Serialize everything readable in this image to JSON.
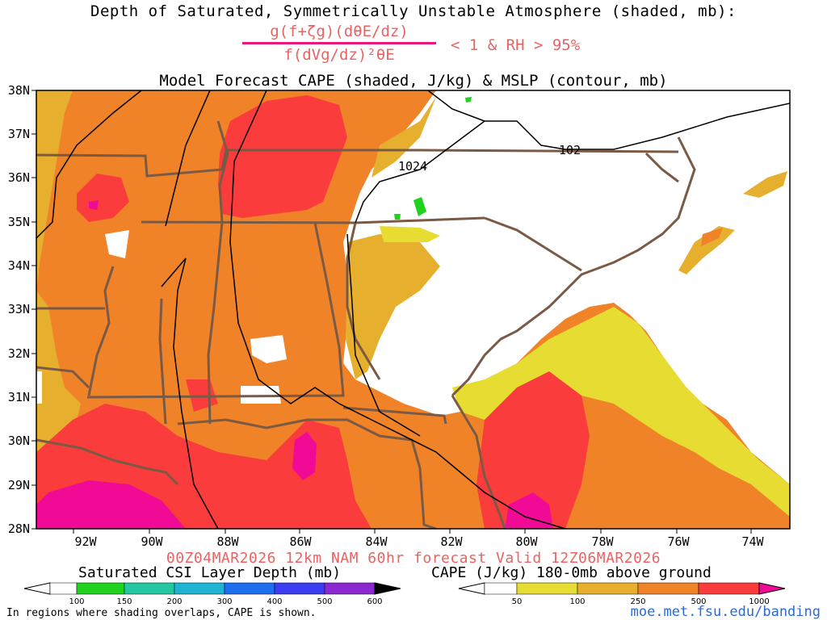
{
  "header": {
    "title_line1": "Depth of Saturated, Symmetrically Unstable Atmosphere (shaded, mb):",
    "formula_numerator": "g(f+ζg)(dθE/dz)",
    "formula_denominator": "f(dVg/dz)²θE",
    "condition": "< 1 & RH > 95%",
    "title_line3": "Model Forecast CAPE (shaded, J/kg) & MSLP (contour, mb)"
  },
  "map": {
    "lat_labels": [
      "38N",
      "37N",
      "36N",
      "35N",
      "34N",
      "33N",
      "32N",
      "31N",
      "30N",
      "29N",
      "28N"
    ],
    "lon_labels": [
      "92W",
      "90W",
      "88W",
      "86W",
      "84W",
      "82W",
      "80W",
      "78W",
      "76W",
      "74W"
    ],
    "isobar_labels": [
      "1024",
      "102"
    ],
    "colors": {
      "cape_50": "#e6dc32",
      "cape_100": "#e6af2d",
      "cape_250": "#f08228",
      "cape_500": "#fa3c3c",
      "cape_1000": "#f00a96",
      "csi_100": "#1ed21e",
      "state_borders": "#7a5a45",
      "isobars": "#000000"
    }
  },
  "footer": {
    "valid_line": "00Z04MAR2026 12km NAM 60hr forecast Valid 12Z06MAR2026",
    "csi_colorbar_title": "Saturated CSI Layer Depth (mb)",
    "csi_colorbar_ticks": [
      "100",
      "150",
      "200",
      "300",
      "400",
      "500",
      "600"
    ],
    "csi_colorbar_colors": [
      "#ffffff",
      "#1ed21e",
      "#23c8a0",
      "#1eb4d2",
      "#1e6ef0",
      "#3c3cf0",
      "#8c28d2",
      "#000000"
    ],
    "cape_colorbar_title": "CAPE (J/kg) 180-0mb above ground",
    "cape_colorbar_ticks": [
      "50",
      "100",
      "250",
      "500",
      "1000"
    ],
    "cape_colorbar_colors": [
      "#ffffff",
      "#e6dc32",
      "#e6af2d",
      "#f08228",
      "#fa3c3c",
      "#f00a96"
    ],
    "note": "In regions where shading overlaps, CAPE is shown.",
    "url": "moe.met.fsu.edu/banding"
  }
}
